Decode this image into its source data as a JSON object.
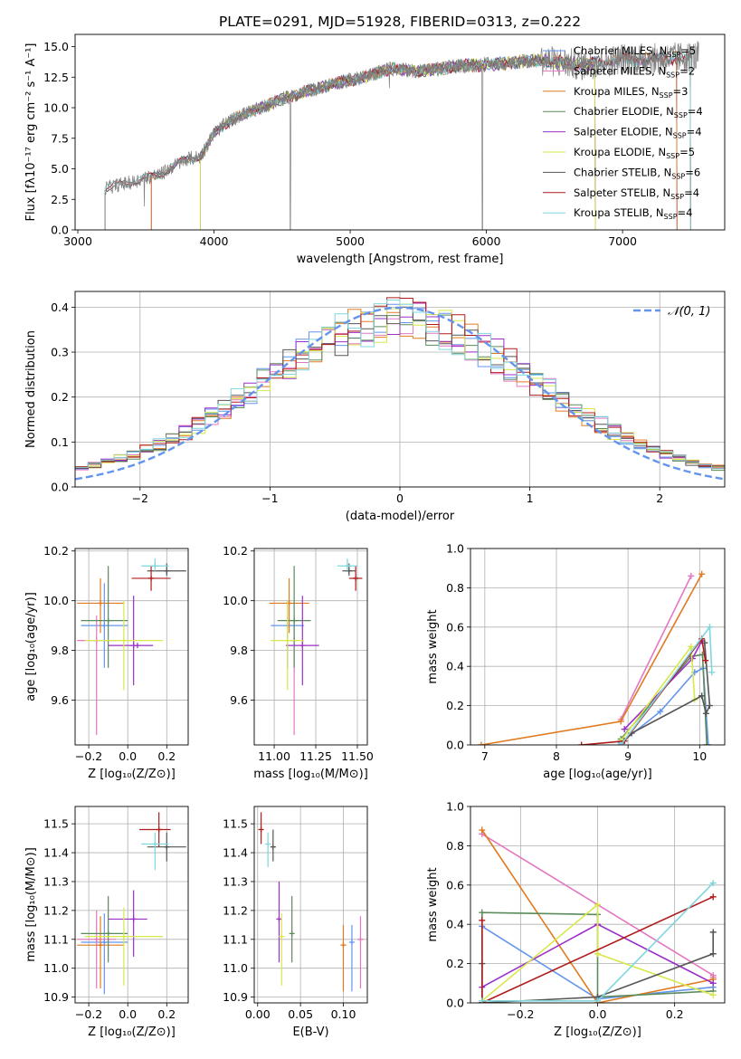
{
  "figure": {
    "title": "PLATE=0291, MJD=51928, FIBERID=0313, z=0.222"
  },
  "series_colors": {
    "Chabrier MILES": "#6495ed",
    "Salpeter MILES": "#e377c2",
    "Kroupa MILES": "#e07b22",
    "Chabrier ELODIE": "#5b8a5b",
    "Salpeter ELODIE": "#9b30c8",
    "Kroupa ELODIE": "#d8e84a",
    "Chabrier STELIB": "#555555",
    "Salpeter STELIB": "#b01c1c",
    "Kroupa STELIB": "#7fd6dc"
  },
  "chart_data": [
    {
      "id": "spectrum",
      "type": "line",
      "title": "PLATE=0291, MJD=51928, FIBERID=0313, z=0.222",
      "xlabel": "wavelength [Angstrom, rest frame]",
      "ylabel": "Flux [fλ10⁻¹⁷ erg cm⁻² s⁻¹ A⁻¹]",
      "xlim": [
        2980,
        7750
      ],
      "ylim": [
        0,
        16
      ],
      "xticks": [
        3000,
        4000,
        5000,
        6000,
        7000
      ],
      "yticks": [
        0.0,
        2.5,
        5.0,
        7.5,
        10.0,
        12.5,
        15.0
      ],
      "grid": false,
      "legend_position": "top-right",
      "legend": [
        "Chabrier MILES, N_SSP=5",
        "Salpeter MILES, N_SSP=2",
        "Kroupa MILES, N_SSP=3",
        "Chabrier ELODIE, N_SSP=4",
        "Salpeter ELODIE, N_SSP=4",
        "Kroupa ELODIE, N_SSP=5",
        "Chabrier STELIB, N_SSP=6",
        "Salpeter STELIB, N_SSP=4",
        "Kroupa STELIB, N_SSP=4"
      ],
      "continuum": {
        "x": [
          3200,
          3300,
          3400,
          3500,
          3600,
          3700,
          3800,
          3900,
          4000,
          4100,
          4200,
          4300,
          4500,
          4700,
          4900,
          5100,
          5300,
          5500,
          5800,
          6100,
          6400,
          6700,
          7000,
          7300,
          7550
        ],
        "y": [
          3.4,
          3.7,
          3.9,
          4.3,
          4.5,
          5.2,
          5.8,
          6.0,
          7.9,
          8.8,
          9.4,
          9.8,
          10.7,
          11.4,
          12.0,
          12.5,
          13.2,
          13.0,
          13.4,
          13.6,
          13.9,
          13.5,
          14.0,
          14.0,
          14.2
        ]
      }
    },
    {
      "id": "residuals",
      "type": "step",
      "xlabel": "(data-model)/error",
      "ylabel": "Normed distribution",
      "xlim": [
        -2.5,
        2.5
      ],
      "ylim": [
        0,
        0.435
      ],
      "xticks": [
        -2,
        -1,
        0,
        1,
        2
      ],
      "yticks": [
        0.0,
        0.1,
        0.2,
        0.3,
        0.4
      ],
      "grid": true,
      "legend": [
        "𝒩(0, 1)"
      ],
      "legend_position": "top-right",
      "bin_width": 0.1,
      "template": [
        0.045,
        0.05,
        0.055,
        0.06,
        0.075,
        0.085,
        0.1,
        0.11,
        0.12,
        0.13,
        0.14,
        0.155,
        0.17,
        0.18,
        0.2,
        0.21,
        0.225,
        0.24,
        0.255,
        0.27,
        0.28,
        0.29,
        0.3,
        0.31,
        0.32,
        0.33,
        0.335,
        0.34,
        0.345,
        0.35,
        0.355,
        0.36,
        0.36,
        0.355,
        0.35,
        0.345,
        0.34,
        0.335,
        0.325,
        0.315,
        0.305,
        0.295,
        0.28,
        0.265,
        0.25,
        0.235,
        0.22,
        0.205,
        0.19,
        0.175,
        0.165,
        0.155,
        0.145,
        0.135,
        0.125,
        0.115,
        0.105,
        0.095,
        0.085,
        0.075,
        0.07,
        0.065,
        0.06,
        0.055,
        0.05,
        0.047,
        0.045,
        0.042,
        0.04,
        0.038,
        0.036,
        0.035
      ]
    },
    {
      "id": "age-vs-Z",
      "type": "scatter",
      "xlabel": "Z [log₁₀(Z/Z⊙)]",
      "ylabel": "age  [log₁₀(age/yr)]",
      "xlim": [
        -0.27,
        0.31
      ],
      "ylim": [
        9.42,
        10.21
      ],
      "xticks": [
        -0.2,
        0.0,
        0.2
      ],
      "yticks": [
        9.6,
        9.8,
        10.0,
        10.2
      ],
      "grid": true,
      "points": [
        {
          "series": "Chabrier MILES",
          "x": -0.12,
          "y": 9.9,
          "xerr": [
            0.12,
            0.12
          ],
          "yerr": [
            0.17,
            0.17
          ]
        },
        {
          "series": "Salpeter MILES",
          "x": -0.16,
          "y": 9.84,
          "xerr": [
            0.1,
            0.1
          ],
          "yerr": [
            0.38,
            0.1
          ]
        },
        {
          "series": "Kroupa MILES",
          "x": -0.14,
          "y": 9.99,
          "xerr": [
            0.12,
            0.12
          ],
          "yerr": [
            0.12,
            0.1
          ]
        },
        {
          "series": "Chabrier ELODIE",
          "x": -0.1,
          "y": 9.92,
          "xerr": [
            0.14,
            0.1
          ],
          "yerr": [
            0.19,
            0.22
          ]
        },
        {
          "series": "Salpeter ELODIE",
          "x": 0.03,
          "y": 9.82,
          "xerr": [
            0.13,
            0.1
          ],
          "yerr": [
            0.16,
            0.2
          ]
        },
        {
          "series": "Kroupa ELODIE",
          "x": -0.02,
          "y": 9.84,
          "xerr": [
            0.2,
            0.2
          ],
          "yerr": [
            0.2,
            0.16
          ]
        },
        {
          "series": "Chabrier STELIB",
          "x": 0.2,
          "y": 10.12,
          "xerr": [
            0.1,
            0.1
          ],
          "yerr": [
            0.02,
            0.03
          ]
        },
        {
          "series": "Salpeter STELIB",
          "x": 0.12,
          "y": 10.09,
          "xerr": [
            0.1,
            0.1
          ],
          "yerr": [
            0.05,
            0.05
          ]
        },
        {
          "series": "Kroupa STELIB",
          "x": 0.14,
          "y": 10.14,
          "xerr": [
            0.07,
            0.07
          ],
          "yerr": [
            0.02,
            0.03
          ]
        },
        {
          "series": "Salpeter ELODIE",
          "x": 0.05,
          "y": 9.82,
          "xerr": [
            0.0,
            0.0
          ],
          "yerr": [
            0.0,
            0.0
          ]
        }
      ]
    },
    {
      "id": "age-vs-mass",
      "type": "scatter",
      "xlabel": "mass [log₁₀(M/M⊙)]",
      "ylabel": "",
      "xlim": [
        10.88,
        11.56
      ],
      "ylim": [
        9.42,
        10.21
      ],
      "xticks": [
        11.0,
        11.25,
        11.5
      ],
      "yticks": [
        9.6,
        9.8,
        10.0,
        10.2
      ],
      "grid": true,
      "points": [
        {
          "series": "Chabrier MILES",
          "x": 11.08,
          "y": 9.9,
          "xerr": [
            0.1,
            0.1
          ],
          "yerr": [
            0.17,
            0.1
          ]
        },
        {
          "series": "Salpeter MILES",
          "x": 11.12,
          "y": 9.84,
          "xerr": [
            0.0,
            0.0
          ],
          "yerr": [
            0.38,
            0.1
          ]
        },
        {
          "series": "Kroupa MILES",
          "x": 11.09,
          "y": 9.99,
          "xerr": [
            0.12,
            0.12
          ],
          "yerr": [
            0.12,
            0.1
          ]
        },
        {
          "series": "Chabrier ELODIE",
          "x": 11.12,
          "y": 9.92,
          "xerr": [
            0.1,
            0.1
          ],
          "yerr": [
            0.19,
            0.22
          ]
        },
        {
          "series": "Salpeter ELODIE",
          "x": 11.17,
          "y": 9.82,
          "xerr": [
            0.1,
            0.1
          ],
          "yerr": [
            0.16,
            0.2
          ]
        },
        {
          "series": "Kroupa ELODIE",
          "x": 11.08,
          "y": 9.84,
          "xerr": [
            0.1,
            0.1
          ],
          "yerr": [
            0.2,
            0.16
          ]
        },
        {
          "series": "Chabrier STELIB",
          "x": 11.45,
          "y": 10.12,
          "xerr": [
            0.04,
            0.04
          ],
          "yerr": [
            0.02,
            0.03
          ]
        },
        {
          "series": "Salpeter STELIB",
          "x": 11.49,
          "y": 10.09,
          "xerr": [
            0.04,
            0.04
          ],
          "yerr": [
            0.05,
            0.05
          ]
        },
        {
          "series": "Kroupa STELIB",
          "x": 11.44,
          "y": 10.14,
          "xerr": [
            0.06,
            0.06
          ],
          "yerr": [
            0.02,
            0.03
          ]
        }
      ]
    },
    {
      "id": "massweight-vs-age",
      "type": "line",
      "xlabel": "age  [log₁₀(age/yr)]",
      "ylabel": "mass weight",
      "xlim": [
        6.8,
        10.35
      ],
      "ylim": [
        0,
        1.0
      ],
      "xticks": [
        7,
        8,
        9,
        10
      ],
      "yticks": [
        0.0,
        0.2,
        0.4,
        0.6,
        0.8,
        1.0
      ],
      "grid": true,
      "series": [
        {
          "name": "Chabrier MILES",
          "x": [
            8.9,
            9.45,
            9.93,
            10.05,
            10.12
          ],
          "y": [
            0.01,
            0.17,
            0.37,
            0.39,
            0.0
          ]
        },
        {
          "name": "Salpeter MILES",
          "x": [
            8.9,
            9.88
          ],
          "y": [
            0.13,
            0.86
          ]
        },
        {
          "name": "Kroupa MILES",
          "x": [
            6.95,
            8.9,
            10.03
          ],
          "y": [
            0.0,
            0.12,
            0.87
          ]
        },
        {
          "name": "Chabrier ELODIE",
          "x": [
            8.9,
            9.88,
            10.04,
            10.1
          ],
          "y": [
            0.03,
            0.45,
            0.46,
            0.0
          ]
        },
        {
          "name": "Salpeter ELODIE",
          "x": [
            8.95,
            9.9,
            10.03
          ],
          "y": [
            0.08,
            0.44,
            0.53
          ]
        },
        {
          "name": "Kroupa ELODIE",
          "x": [
            8.9,
            9.88,
            9.93,
            10.03
          ],
          "y": [
            0.02,
            0.5,
            0.23,
            0.25
          ]
        },
        {
          "name": "Chabrier STELIB",
          "x": [
            8.9,
            9.05,
            10.03,
            10.09,
            10.14,
            10.07
          ],
          "y": [
            0.0,
            0.06,
            0.25,
            0.16,
            0.2,
            0.52
          ]
        },
        {
          "name": "Salpeter STELIB",
          "x": [
            8.35,
            8.95,
            10.03,
            10.08
          ],
          "y": [
            0.0,
            0.02,
            0.54,
            0.43
          ]
        },
        {
          "name": "Kroupa STELIB",
          "x": [
            8.9,
            10.14,
            10.17
          ],
          "y": [
            0.0,
            0.6,
            0.37
          ]
        }
      ]
    },
    {
      "id": "mass-vs-Z",
      "type": "scatter",
      "xlabel": "Z [log₁₀(Z/Z⊙)]",
      "ylabel": "mass [log₁₀(M/M⊙)]",
      "xlim": [
        -0.27,
        0.31
      ],
      "ylim": [
        10.88,
        11.56
      ],
      "xticks": [
        -0.2,
        0.0,
        0.2
      ],
      "yticks": [
        10.9,
        11.0,
        11.1,
        11.2,
        11.3,
        11.4,
        11.5
      ],
      "grid": true,
      "points": [
        {
          "series": "Chabrier MILES",
          "x": -0.12,
          "y": 11.09,
          "xerr": [
            0.12,
            0.12
          ],
          "yerr": [
            0.18,
            0.1
          ]
        },
        {
          "series": "Salpeter MILES",
          "x": -0.16,
          "y": 11.1,
          "xerr": [
            0.1,
            0.1
          ],
          "yerr": [
            0.17,
            0.1
          ]
        },
        {
          "series": "Kroupa MILES",
          "x": -0.14,
          "y": 11.08,
          "xerr": [
            0.12,
            0.12
          ],
          "yerr": [
            0.15,
            0.1
          ]
        },
        {
          "series": "Chabrier ELODIE",
          "x": -0.1,
          "y": 11.12,
          "xerr": [
            0.14,
            0.1
          ],
          "yerr": [
            0.1,
            0.13
          ]
        },
        {
          "series": "Salpeter ELODIE",
          "x": 0.03,
          "y": 11.17,
          "xerr": [
            0.13,
            0.07
          ],
          "yerr": [
            0.13,
            0.1
          ]
        },
        {
          "series": "Kroupa ELODIE",
          "x": -0.02,
          "y": 11.11,
          "xerr": [
            0.2,
            0.2
          ],
          "yerr": [
            0.17,
            0.1
          ]
        },
        {
          "series": "Chabrier STELIB",
          "x": 0.2,
          "y": 11.42,
          "xerr": [
            0.1,
            0.1
          ],
          "yerr": [
            0.05,
            0.05
          ]
        },
        {
          "series": "Salpeter STELIB",
          "x": 0.16,
          "y": 11.48,
          "xerr": [
            0.1,
            0.06
          ],
          "yerr": [
            0.06,
            0.06
          ]
        },
        {
          "series": "Kroupa STELIB",
          "x": 0.14,
          "y": 11.43,
          "xerr": [
            0.07,
            0.07
          ],
          "yerr": [
            0.09,
            0.04
          ]
        }
      ]
    },
    {
      "id": "mass-vs-ebv",
      "type": "scatter",
      "xlabel": "E(B-V)",
      "ylabel": "",
      "xlim": [
        -0.004,
        0.128
      ],
      "ylim": [
        10.88,
        11.56
      ],
      "xticks": [
        0.0,
        0.05,
        0.1
      ],
      "yticks": [
        10.9,
        11.0,
        11.1,
        11.2,
        11.3,
        11.4,
        11.5
      ],
      "grid": true,
      "points": [
        {
          "series": "Chabrier MILES",
          "x": 0.11,
          "y": 11.09,
          "xerr": [
            0,
            0
          ],
          "yerr": [
            0.17,
            0.06
          ]
        },
        {
          "series": "Salpeter MILES",
          "x": 0.12,
          "y": 11.1,
          "xerr": [
            0,
            0
          ],
          "yerr": [
            0.17,
            0.08
          ]
        },
        {
          "series": "Kroupa MILES",
          "x": 0.1,
          "y": 11.08,
          "xerr": [
            0,
            0
          ],
          "yerr": [
            0.16,
            0.07
          ]
        },
        {
          "series": "Chabrier ELODIE",
          "x": 0.04,
          "y": 11.12,
          "xerr": [
            0,
            0
          ],
          "yerr": [
            0.1,
            0.13
          ]
        },
        {
          "series": "Salpeter ELODIE",
          "x": 0.025,
          "y": 11.17,
          "xerr": [
            0,
            0
          ],
          "yerr": [
            0.15,
            0.13
          ]
        },
        {
          "series": "Kroupa ELODIE",
          "x": 0.028,
          "y": 11.11,
          "xerr": [
            0,
            0
          ],
          "yerr": [
            0.17,
            0.08
          ]
        },
        {
          "series": "Chabrier STELIB",
          "x": 0.018,
          "y": 11.42,
          "xerr": [
            0,
            0
          ],
          "yerr": [
            0.05,
            0.06
          ]
        },
        {
          "series": "Salpeter STELIB",
          "x": 0.004,
          "y": 11.48,
          "xerr": [
            0,
            0
          ],
          "yerr": [
            0.05,
            0.06
          ]
        },
        {
          "series": "Kroupa STELIB",
          "x": 0.012,
          "y": 11.43,
          "xerr": [
            0,
            0
          ],
          "yerr": [
            0.08,
            0.04
          ]
        }
      ]
    },
    {
      "id": "massweight-vs-Z",
      "type": "line",
      "xlabel": "Z [log₁₀(Z/Z⊙)]",
      "ylabel": "mass weight",
      "xlim": [
        -0.33,
        0.33
      ],
      "ylim": [
        0,
        1.0
      ],
      "xticks": [
        -0.2,
        0.0,
        0.2
      ],
      "yticks": [
        0.0,
        0.2,
        0.4,
        0.6,
        0.8,
        1.0
      ],
      "grid": true,
      "series": [
        {
          "name": "Chabrier MILES",
          "x": [
            -0.3,
            -0.3,
            0.0,
            0.3
          ],
          "y": [
            0.0,
            0.39,
            0.02,
            0.08
          ]
        },
        {
          "name": "Salpeter MILES",
          "x": [
            -0.3,
            0.3,
            0.3
          ],
          "y": [
            0.86,
            0.14,
            0.13
          ]
        },
        {
          "name": "Kroupa MILES",
          "x": [
            -0.3,
            0.0,
            0.3
          ],
          "y": [
            0.88,
            0.0,
            0.12
          ]
        },
        {
          "name": "Chabrier ELODIE",
          "x": [
            -0.3,
            -0.3,
            0.0,
            0.0,
            0.3
          ],
          "y": [
            0.0,
            0.46,
            0.45,
            0.03,
            0.06
          ]
        },
        {
          "name": "Salpeter ELODIE",
          "x": [
            -0.3,
            0.0,
            0.3
          ],
          "y": [
            0.08,
            0.4,
            0.1
          ]
        },
        {
          "name": "Kroupa ELODIE",
          "x": [
            -0.3,
            0.0,
            0.0,
            0.3
          ],
          "y": [
            0.01,
            0.5,
            0.25,
            0.04
          ]
        },
        {
          "name": "Chabrier STELIB",
          "x": [
            -0.3,
            -0.3,
            0.0,
            0.3,
            0.3
          ],
          "y": [
            0.2,
            0.0,
            0.03,
            0.25,
            0.36
          ]
        },
        {
          "name": "Salpeter STELIB",
          "x": [
            -0.3,
            -0.3,
            0.3
          ],
          "y": [
            0.42,
            0.0,
            0.54
          ]
        },
        {
          "name": "Kroupa STELIB",
          "x": [
            -0.3,
            0.0,
            0.3
          ],
          "y": [
            0.01,
            0.01,
            0.61
          ]
        }
      ]
    }
  ]
}
